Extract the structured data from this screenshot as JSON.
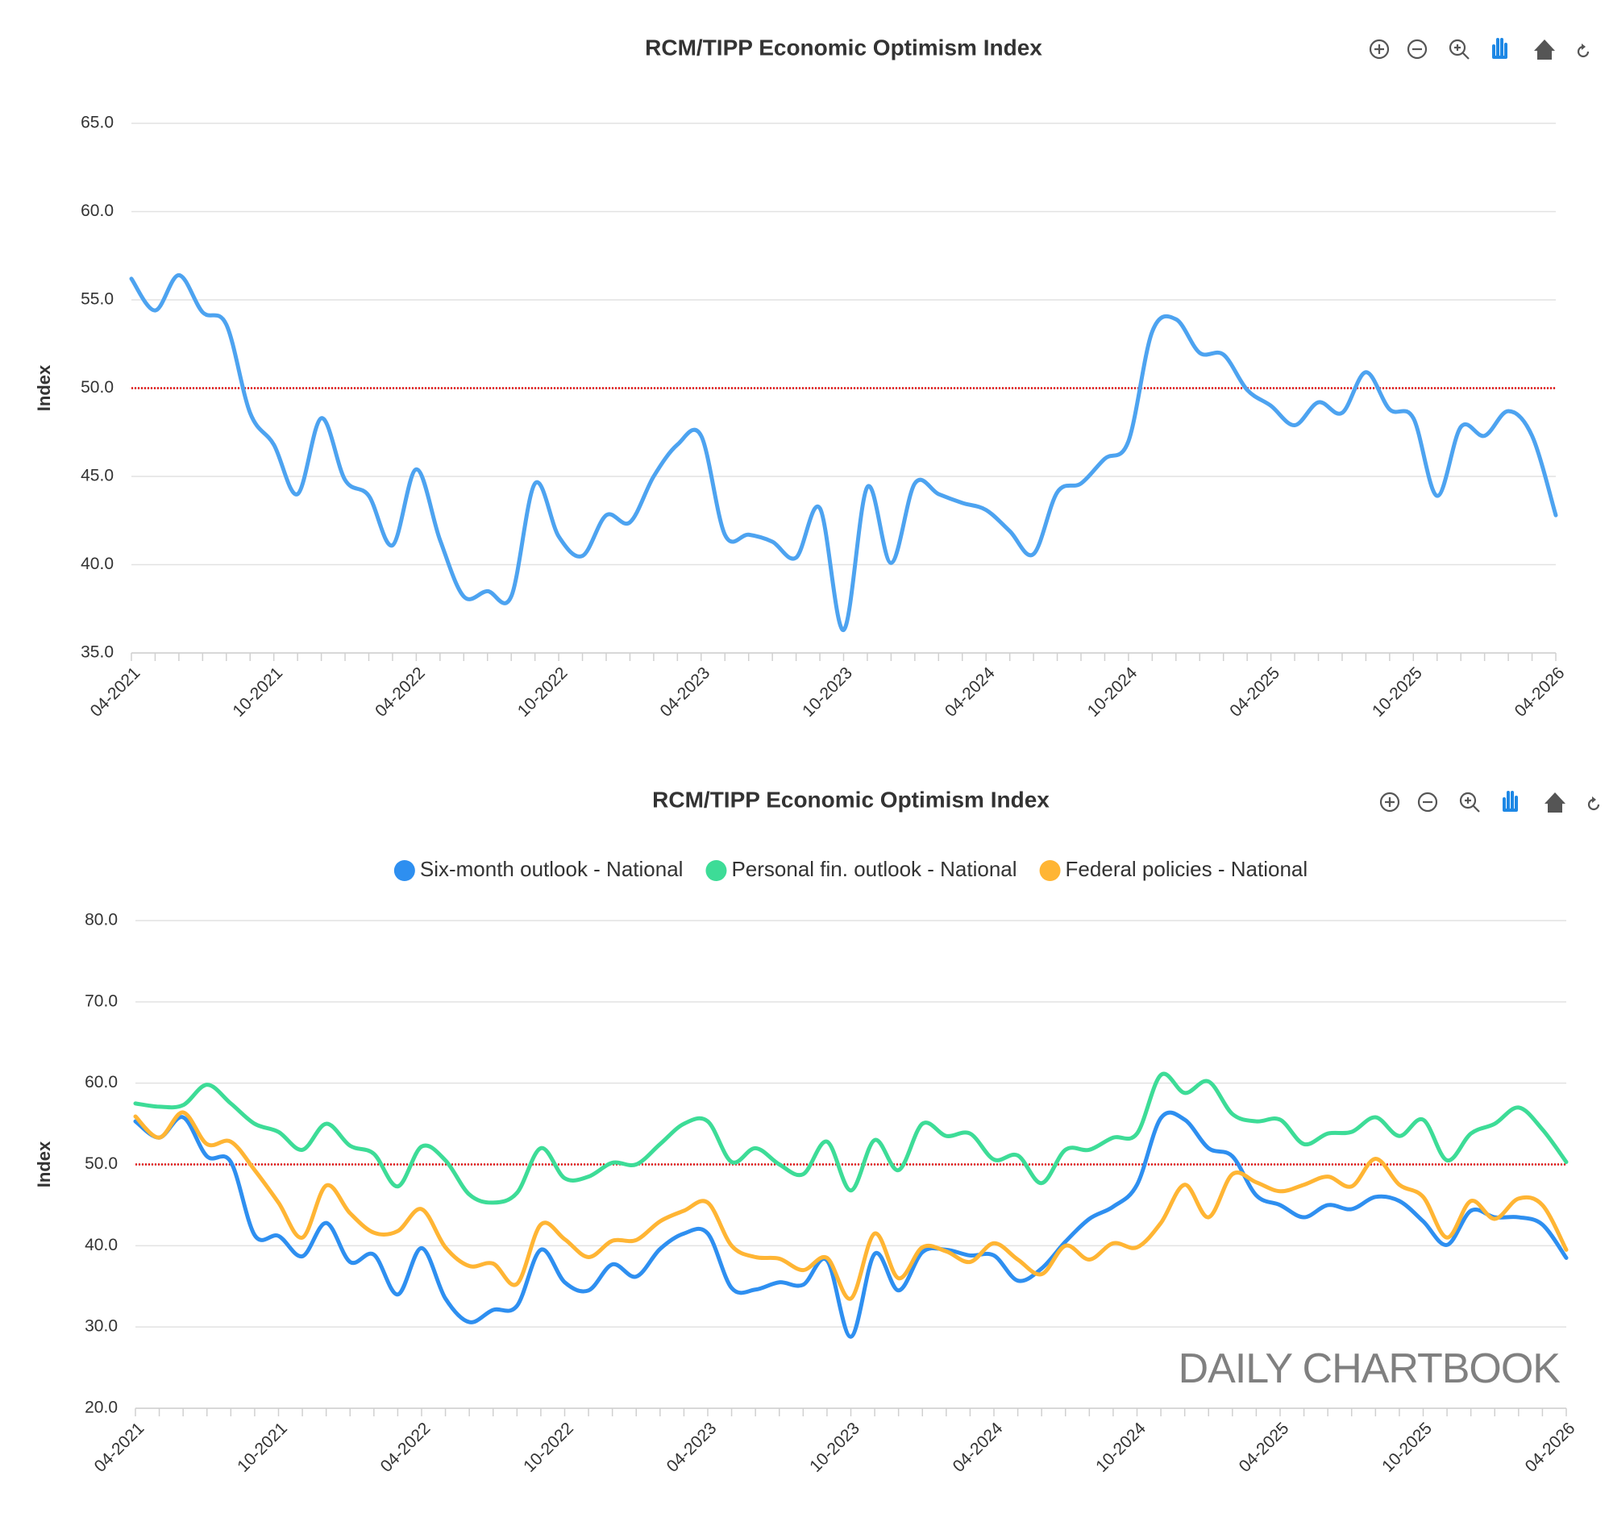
{
  "chart_data": [
    {
      "type": "line",
      "title": "RCM/TIPP Economic Optimism Index",
      "y_label": "Index",
      "categories": [
        "04-2021",
        null,
        null,
        null,
        null,
        null,
        "10-2021",
        null,
        null,
        null,
        null,
        null,
        "04-2022",
        null,
        null,
        null,
        null,
        null,
        "10-2022",
        null,
        null,
        null,
        null,
        null,
        "04-2023",
        null,
        null,
        null,
        null,
        null,
        "10-2023",
        null,
        null,
        null,
        null,
        null,
        "04-2024",
        null,
        null,
        null,
        null,
        null,
        "10-2024",
        null,
        null,
        null,
        null,
        null,
        "04-2025",
        null,
        null,
        null,
        null,
        null,
        "10-2025",
        null,
        null,
        null,
        null,
        null,
        "04-2026"
      ],
      "series": [
        {
          "name": "Index",
          "color": "#4da3f0",
          "values": [
            56.2,
            54.4,
            56.4,
            54.3,
            53.6,
            48.6,
            46.8,
            44.0,
            48.3,
            44.8,
            43.9,
            41.1,
            45.4,
            41.4,
            38.2,
            38.5,
            38.2,
            44.6,
            41.6,
            40.5,
            42.8,
            42.4,
            45.0,
            46.8,
            47.3,
            41.7,
            41.7,
            41.3,
            40.4,
            43.2,
            36.3,
            44.4,
            40.1,
            44.6,
            44.0,
            43.5,
            43.1,
            41.9,
            40.6,
            44.1,
            44.6,
            46.0,
            47.0,
            53.2,
            53.9,
            52.0,
            51.9,
            49.9,
            49.0,
            47.9,
            49.2,
            48.6,
            50.9,
            48.8,
            48.3,
            43.9,
            47.8,
            47.3,
            48.7,
            47.3,
            42.8
          ]
        }
      ],
      "ylim": [
        35,
        65
      ],
      "yticks": [
        {
          "value": 35,
          "label": "35.0"
        },
        {
          "value": 40,
          "label": "40.0"
        },
        {
          "value": 45,
          "label": "45.0"
        },
        {
          "value": 50,
          "label": "50.0"
        },
        {
          "value": 55,
          "label": "55.0"
        },
        {
          "value": 60,
          "label": "60.0"
        },
        {
          "value": 65,
          "label": "65.0"
        }
      ],
      "grid": true,
      "reference_line": 50,
      "reference_color": "#e01010"
    },
    {
      "type": "line",
      "title": "RCM/TIPP Economic Optimism Index",
      "y_label": "Index",
      "legend": "top",
      "watermark": "DAILY CHARTBOOK",
      "categories": [
        "04-2021",
        null,
        null,
        null,
        null,
        null,
        "10-2021",
        null,
        null,
        null,
        null,
        null,
        "04-2022",
        null,
        null,
        null,
        null,
        null,
        "10-2022",
        null,
        null,
        null,
        null,
        null,
        "04-2023",
        null,
        null,
        null,
        null,
        null,
        "10-2023",
        null,
        null,
        null,
        null,
        null,
        "04-2024",
        null,
        null,
        null,
        null,
        null,
        "10-2024",
        null,
        null,
        null,
        null,
        null,
        "04-2025",
        null,
        null,
        null,
        null,
        null,
        "10-2025",
        null,
        null,
        null,
        null,
        null,
        "04-2026"
      ],
      "series": [
        {
          "name": "Six-month outlook - National",
          "color": "#2e8ff0",
          "values": [
            55.3,
            53.3,
            55.8,
            51.0,
            50.3,
            41.3,
            41.2,
            38.7,
            42.8,
            38.0,
            38.9,
            34.0,
            39.7,
            33.5,
            30.6,
            32.1,
            32.6,
            39.5,
            35.5,
            34.5,
            37.7,
            36.2,
            39.6,
            41.5,
            41.5,
            34.8,
            34.6,
            35.5,
            35.2,
            38.2,
            28.8,
            39.0,
            34.5,
            39.2,
            39.5,
            38.8,
            38.8,
            35.7,
            37.2,
            40.5,
            43.3,
            44.8,
            47.5,
            55.7,
            55.5,
            52.0,
            51.0,
            46.2,
            45.0,
            43.5,
            45.0,
            44.5,
            46.0,
            45.5,
            43.0,
            40.1,
            44.3,
            43.5,
            43.5,
            42.6,
            38.5
          ]
        },
        {
          "name": "Personal fin. outlook - National",
          "color": "#3ddc97",
          "values": [
            57.5,
            57.1,
            57.3,
            59.8,
            57.5,
            55.0,
            54.0,
            51.8,
            55.0,
            52.3,
            51.3,
            47.3,
            52.2,
            50.5,
            46.3,
            45.3,
            46.5,
            52.0,
            48.3,
            48.5,
            50.2,
            50.0,
            52.5,
            55.0,
            55.3,
            50.3,
            52.0,
            50.0,
            48.8,
            52.8,
            46.8,
            53.0,
            49.3,
            55.0,
            53.5,
            53.8,
            50.6,
            51.1,
            47.7,
            51.8,
            51.8,
            53.3,
            53.8,
            61.0,
            58.8,
            60.2,
            56.2,
            55.3,
            55.5,
            52.5,
            53.8,
            54.0,
            55.8,
            53.5,
            55.5,
            50.5,
            53.8,
            55.0,
            57.0,
            54.3,
            50.3
          ]
        },
        {
          "name": "Federal policies - National",
          "color": "#ffb534",
          "values": [
            55.9,
            53.3,
            56.4,
            52.5,
            52.8,
            49.3,
            45.3,
            41.0,
            47.4,
            44.0,
            41.6,
            41.8,
            44.5,
            39.8,
            37.5,
            37.8,
            35.3,
            42.6,
            40.8,
            38.6,
            40.6,
            40.7,
            43.0,
            44.3,
            45.3,
            40.0,
            38.6,
            38.4,
            37.0,
            38.5,
            33.5,
            41.5,
            36.0,
            39.8,
            39.3,
            38.0,
            40.3,
            38.3,
            36.5,
            40.0,
            38.3,
            40.3,
            39.8,
            42.8,
            47.5,
            43.5,
            48.8,
            47.8,
            46.7,
            47.5,
            48.5,
            47.3,
            50.7,
            47.5,
            46.0,
            41.0,
            45.5,
            43.3,
            45.8,
            45.0,
            39.5
          ]
        }
      ],
      "ylim": [
        20,
        80
      ],
      "yticks": [
        {
          "value": 20,
          "label": "20.0"
        },
        {
          "value": 30,
          "label": "30.0"
        },
        {
          "value": 40,
          "label": "40.0"
        },
        {
          "value": 50,
          "label": "50.0"
        },
        {
          "value": 60,
          "label": "60.0"
        },
        {
          "value": 70,
          "label": "70.0"
        },
        {
          "value": 80,
          "label": "80.0"
        }
      ],
      "grid": true,
      "reference_line": 50,
      "reference_color": "#e01010"
    }
  ]
}
